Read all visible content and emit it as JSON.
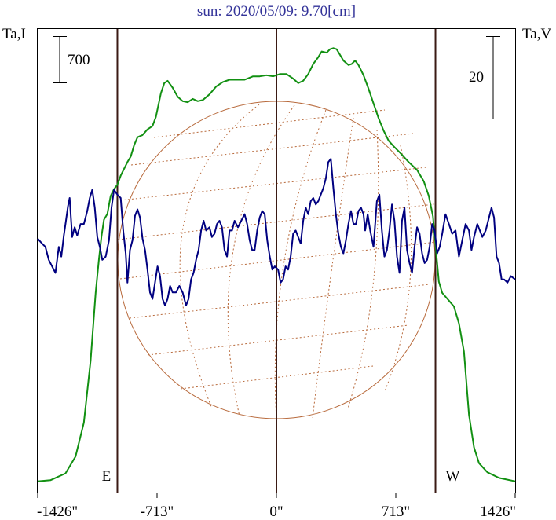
{
  "chart_data": {
    "type": "line",
    "title": "sun: 2020/05/09: 9.70[cm]",
    "left_axis_label": "Ta,I",
    "right_axis_label": "Ta,V",
    "left_scale_bar_label": "700",
    "right_scale_bar_label": "20",
    "x_ticks": [
      {
        "label": "-1426\"",
        "value": -1426
      },
      {
        "label": "-713\"",
        "value": -713
      },
      {
        "label": "0\"",
        "value": 0
      },
      {
        "label": "713\"",
        "value": 713
      },
      {
        "label": "1426\"",
        "value": 1426
      }
    ],
    "xlim": [
      -1426,
      1426
    ],
    "limb_markers": [
      {
        "label": "E",
        "value": -950
      },
      {
        "label": "W",
        "value": 950
      }
    ],
    "center_line": 0,
    "series": [
      {
        "color": "#129012",
        "axis": "left",
        "scale": [
          0,
          3900
        ],
        "points": [
          [
            -1426,
            30
          ],
          [
            -1350,
            40
          ],
          [
            -1260,
            100
          ],
          [
            -1200,
            250
          ],
          [
            -1150,
            550
          ],
          [
            -1110,
            1100
          ],
          [
            -1080,
            1700
          ],
          [
            -1060,
            2000
          ],
          [
            -1045,
            2200
          ],
          [
            -1030,
            2350
          ],
          [
            -1010,
            2400
          ],
          [
            -990,
            2560
          ],
          [
            -970,
            2620
          ],
          [
            -950,
            2660
          ],
          [
            -930,
            2740
          ],
          [
            -910,
            2800
          ],
          [
            -890,
            2860
          ],
          [
            -870,
            2910
          ],
          [
            -850,
            3010
          ],
          [
            -830,
            3080
          ],
          [
            -800,
            3100
          ],
          [
            -770,
            3150
          ],
          [
            -740,
            3180
          ],
          [
            -720,
            3260
          ],
          [
            -690,
            3470
          ],
          [
            -670,
            3560
          ],
          [
            -650,
            3580
          ],
          [
            -620,
            3520
          ],
          [
            -590,
            3440
          ],
          [
            -560,
            3400
          ],
          [
            -530,
            3390
          ],
          [
            -500,
            3420
          ],
          [
            -470,
            3400
          ],
          [
            -440,
            3410
          ],
          [
            -400,
            3460
          ],
          [
            -360,
            3530
          ],
          [
            -320,
            3570
          ],
          [
            -280,
            3590
          ],
          [
            -240,
            3590
          ],
          [
            -190,
            3590
          ],
          [
            -140,
            3620
          ],
          [
            -100,
            3620
          ],
          [
            -60,
            3630
          ],
          [
            -20,
            3620
          ],
          [
            20,
            3640
          ],
          [
            60,
            3640
          ],
          [
            100,
            3600
          ],
          [
            130,
            3560
          ],
          [
            160,
            3580
          ],
          [
            190,
            3640
          ],
          [
            220,
            3730
          ],
          [
            250,
            3790
          ],
          [
            270,
            3840
          ],
          [
            300,
            3830
          ],
          [
            320,
            3860
          ],
          [
            340,
            3870
          ],
          [
            360,
            3860
          ],
          [
            380,
            3810
          ],
          [
            400,
            3760
          ],
          [
            430,
            3720
          ],
          [
            450,
            3730
          ],
          [
            470,
            3760
          ],
          [
            490,
            3720
          ],
          [
            520,
            3630
          ],
          [
            550,
            3510
          ],
          [
            580,
            3380
          ],
          [
            610,
            3250
          ],
          [
            640,
            3140
          ],
          [
            670,
            3050
          ],
          [
            700,
            3000
          ],
          [
            740,
            2940
          ],
          [
            790,
            2860
          ],
          [
            840,
            2790
          ],
          [
            880,
            2690
          ],
          [
            910,
            2560
          ],
          [
            935,
            2380
          ],
          [
            950,
            2130
          ],
          [
            970,
            1800
          ],
          [
            990,
            1700
          ],
          [
            1020,
            1650
          ],
          [
            1060,
            1580
          ],
          [
            1090,
            1430
          ],
          [
            1120,
            1180
          ],
          [
            1150,
            620
          ],
          [
            1180,
            330
          ],
          [
            1210,
            190
          ],
          [
            1260,
            110
          ],
          [
            1330,
            60
          ],
          [
            1426,
            30
          ]
        ]
      },
      {
        "color": "#000080",
        "axis": "right",
        "scale": [
          -7.5,
          6.0
        ],
        "points": [
          [
            -1426,
            0.05
          ],
          [
            -1400,
            -0.1
          ],
          [
            -1380,
            -0.2
          ],
          [
            -1360,
            -0.6
          ],
          [
            -1340,
            -0.8
          ],
          [
            -1320,
            -1.0
          ],
          [
            -1300,
            -0.2
          ],
          [
            -1285,
            -0.5
          ],
          [
            -1270,
            0.15
          ],
          [
            -1260,
            0.5
          ],
          [
            -1245,
            1.05
          ],
          [
            -1235,
            1.3
          ],
          [
            -1220,
            0.1
          ],
          [
            -1205,
            0.4
          ],
          [
            -1190,
            0.15
          ],
          [
            -1170,
            0.5
          ],
          [
            -1150,
            0.5
          ],
          [
            -1130,
            0.9
          ],
          [
            -1115,
            1.3
          ],
          [
            -1100,
            1.55
          ],
          [
            -1085,
            1.0
          ],
          [
            -1070,
            0.1
          ],
          [
            -1055,
            -0.2
          ],
          [
            -1040,
            -0.6
          ],
          [
            -1020,
            -0.5
          ],
          [
            -1000,
            0.0
          ],
          [
            -985,
            1.0
          ],
          [
            -970,
            1.55
          ],
          [
            -950,
            1.4
          ],
          [
            -930,
            1.3
          ],
          [
            -915,
            0.3
          ],
          [
            -900,
            -0.4
          ],
          [
            -890,
            -1.3
          ],
          [
            -875,
            -0.3
          ],
          [
            -860,
            0.0
          ],
          [
            -845,
            0.75
          ],
          [
            -830,
            0.95
          ],
          [
            -815,
            0.7
          ],
          [
            -800,
            0.05
          ],
          [
            -785,
            -0.3
          ],
          [
            -770,
            -0.9
          ],
          [
            -755,
            -1.6
          ],
          [
            -740,
            -1.8
          ],
          [
            -725,
            -1.3
          ],
          [
            -710,
            -0.8
          ],
          [
            -695,
            -1.1
          ],
          [
            -680,
            -1.8
          ],
          [
            -665,
            -2.0
          ],
          [
            -650,
            -1.8
          ],
          [
            -635,
            -1.4
          ],
          [
            -620,
            -1.6
          ],
          [
            -600,
            -1.6
          ],
          [
            -580,
            -1.4
          ],
          [
            -560,
            -1.6
          ],
          [
            -540,
            -2.0
          ],
          [
            -525,
            -1.8
          ],
          [
            -510,
            -1.2
          ],
          [
            -495,
            -1.0
          ],
          [
            -480,
            -0.6
          ],
          [
            -465,
            -0.3
          ],
          [
            -450,
            0.3
          ],
          [
            -435,
            0.6
          ],
          [
            -420,
            0.3
          ],
          [
            -400,
            0.4
          ],
          [
            -385,
            0.1
          ],
          [
            -370,
            0.2
          ],
          [
            -355,
            0.5
          ],
          [
            -340,
            0.6
          ],
          [
            -325,
            0.4
          ],
          [
            -310,
            -0.3
          ],
          [
            -295,
            -0.5
          ],
          [
            -280,
            0.3
          ],
          [
            -265,
            0.3
          ],
          [
            -250,
            0.6
          ],
          [
            -230,
            0.4
          ],
          [
            -210,
            0.6
          ],
          [
            -190,
            0.8
          ],
          [
            -175,
            0.5
          ],
          [
            -160,
            0.0
          ],
          [
            -145,
            -0.3
          ],
          [
            -130,
            -0.3
          ],
          [
            -115,
            0.3
          ],
          [
            -100,
            0.7
          ],
          [
            -85,
            0.9
          ],
          [
            -70,
            0.8
          ],
          [
            -55,
            0.0
          ],
          [
            -40,
            -0.5
          ],
          [
            -25,
            -0.9
          ],
          [
            -10,
            -0.8
          ],
          [
            10,
            -0.9
          ],
          [
            25,
            -1.3
          ],
          [
            40,
            -1.2
          ],
          [
            55,
            -0.8
          ],
          [
            70,
            -0.9
          ],
          [
            85,
            -0.5
          ],
          [
            100,
            0.2
          ],
          [
            115,
            0.3
          ],
          [
            130,
            0.1
          ],
          [
            145,
            -0.1
          ],
          [
            160,
            0.6
          ],
          [
            175,
            1.0
          ],
          [
            190,
            0.8
          ],
          [
            205,
            1.2
          ],
          [
            220,
            1.3
          ],
          [
            235,
            1.1
          ],
          [
            250,
            1.2
          ],
          [
            265,
            1.4
          ],
          [
            280,
            1.6
          ],
          [
            295,
            1.9
          ],
          [
            310,
            2.4
          ],
          [
            325,
            2.5
          ],
          [
            340,
            1.6
          ],
          [
            355,
            0.8
          ],
          [
            370,
            0.2
          ],
          [
            385,
            -0.2
          ],
          [
            400,
            -0.4
          ],
          [
            415,
            0.0
          ],
          [
            430,
            0.5
          ],
          [
            445,
            0.9
          ],
          [
            460,
            0.5
          ],
          [
            475,
            0.5
          ],
          [
            490,
            0.9
          ],
          [
            505,
            1.0
          ],
          [
            520,
            0.8
          ],
          [
            530,
            0.3
          ],
          [
            545,
            0.8
          ],
          [
            560,
            0.3
          ],
          [
            580,
            -0.2
          ],
          [
            600,
            1.2
          ],
          [
            615,
            1.4
          ],
          [
            630,
            0.3
          ],
          [
            645,
            -0.5
          ],
          [
            660,
            -0.3
          ],
          [
            675,
            0.3
          ],
          [
            690,
            1.1
          ],
          [
            705,
            0.6
          ],
          [
            720,
            -0.5
          ],
          [
            735,
            -1.0
          ],
          [
            750,
            0.6
          ],
          [
            765,
            1.0
          ],
          [
            780,
            -0.3
          ],
          [
            795,
            -0.7
          ],
          [
            810,
            -1.0
          ],
          [
            825,
            -0.2
          ],
          [
            840,
            0.4
          ],
          [
            855,
            0.2
          ],
          [
            870,
            -0.4
          ],
          [
            885,
            -0.7
          ],
          [
            900,
            -0.6
          ],
          [
            915,
            -0.2
          ],
          [
            930,
            0.5
          ],
          [
            945,
            0.3
          ],
          [
            960,
            -0.4
          ],
          [
            975,
            -0.2
          ],
          [
            990,
            0.2
          ],
          [
            1010,
            0.8
          ],
          [
            1030,
            0.5
          ],
          [
            1050,
            0.2
          ],
          [
            1070,
            0.3
          ],
          [
            1090,
            -0.5
          ],
          [
            1110,
            0.0
          ],
          [
            1130,
            0.5
          ],
          [
            1150,
            0.3
          ],
          [
            1165,
            -0.3
          ],
          [
            1180,
            0.1
          ],
          [
            1200,
            0.5
          ],
          [
            1215,
            0.3
          ],
          [
            1230,
            0.1
          ],
          [
            1250,
            0.3
          ],
          [
            1270,
            0.7
          ],
          [
            1285,
            1.0
          ],
          [
            1300,
            0.7
          ],
          [
            1315,
            -0.5
          ],
          [
            1330,
            -0.7
          ],
          [
            1345,
            -1.2
          ],
          [
            1360,
            -1.2
          ],
          [
            1380,
            -1.3
          ],
          [
            1400,
            -1.1
          ],
          [
            1426,
            -1.2
          ]
        ]
      }
    ],
    "grid": false,
    "legend": "none"
  }
}
